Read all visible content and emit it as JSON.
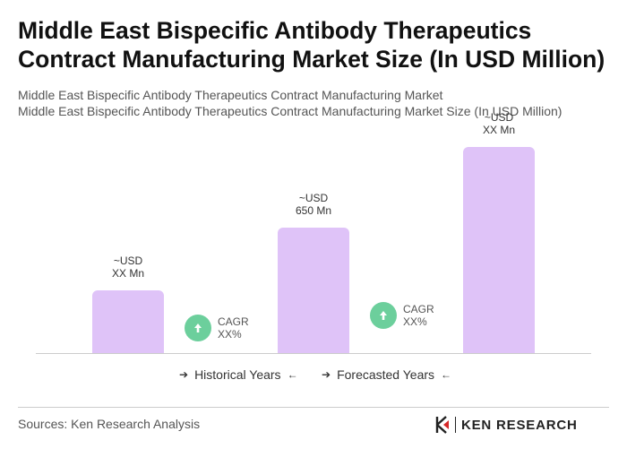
{
  "title": "Middle East Bispecific Antibody Therapeutics Contract Manufacturing Market Size (In USD Million)",
  "subtitle_line1": "Middle East Bispecific Antibody Therapeutics Contract Manufacturing Market",
  "subtitle_line2": "Middle East Bispecific Antibody Therapeutics Contract Manufacturing Market Size (In USD Million)",
  "chart_data": {
    "type": "bar",
    "categories": [
      "",
      "",
      ""
    ],
    "values": [
      70,
      140,
      230
    ],
    "value_labels": [
      {
        "line1": "~USD",
        "line2": "XX Mn"
      },
      {
        "line1": "~USD",
        "line2": "650 Mn"
      },
      {
        "line1": "~USD",
        "line2": "XX Mn"
      }
    ],
    "ylim": [
      0,
      230
    ],
    "grid": false,
    "bar_color": "#dfc3f8",
    "cagr_labels": [
      {
        "line1": "CAGR",
        "line2": "XX%"
      },
      {
        "line1": "CAGR",
        "line2": "XX%"
      }
    ],
    "legend": {
      "historical": "Historical Years",
      "forecasted": "Forecasted Years"
    }
  },
  "colors": {
    "accent_green": "#6ccf9c",
    "bar": "#dfc3f8"
  },
  "footer": {
    "sources": "Sources: Ken Research Analysis",
    "logo_text": "KEN RESEARCH"
  }
}
